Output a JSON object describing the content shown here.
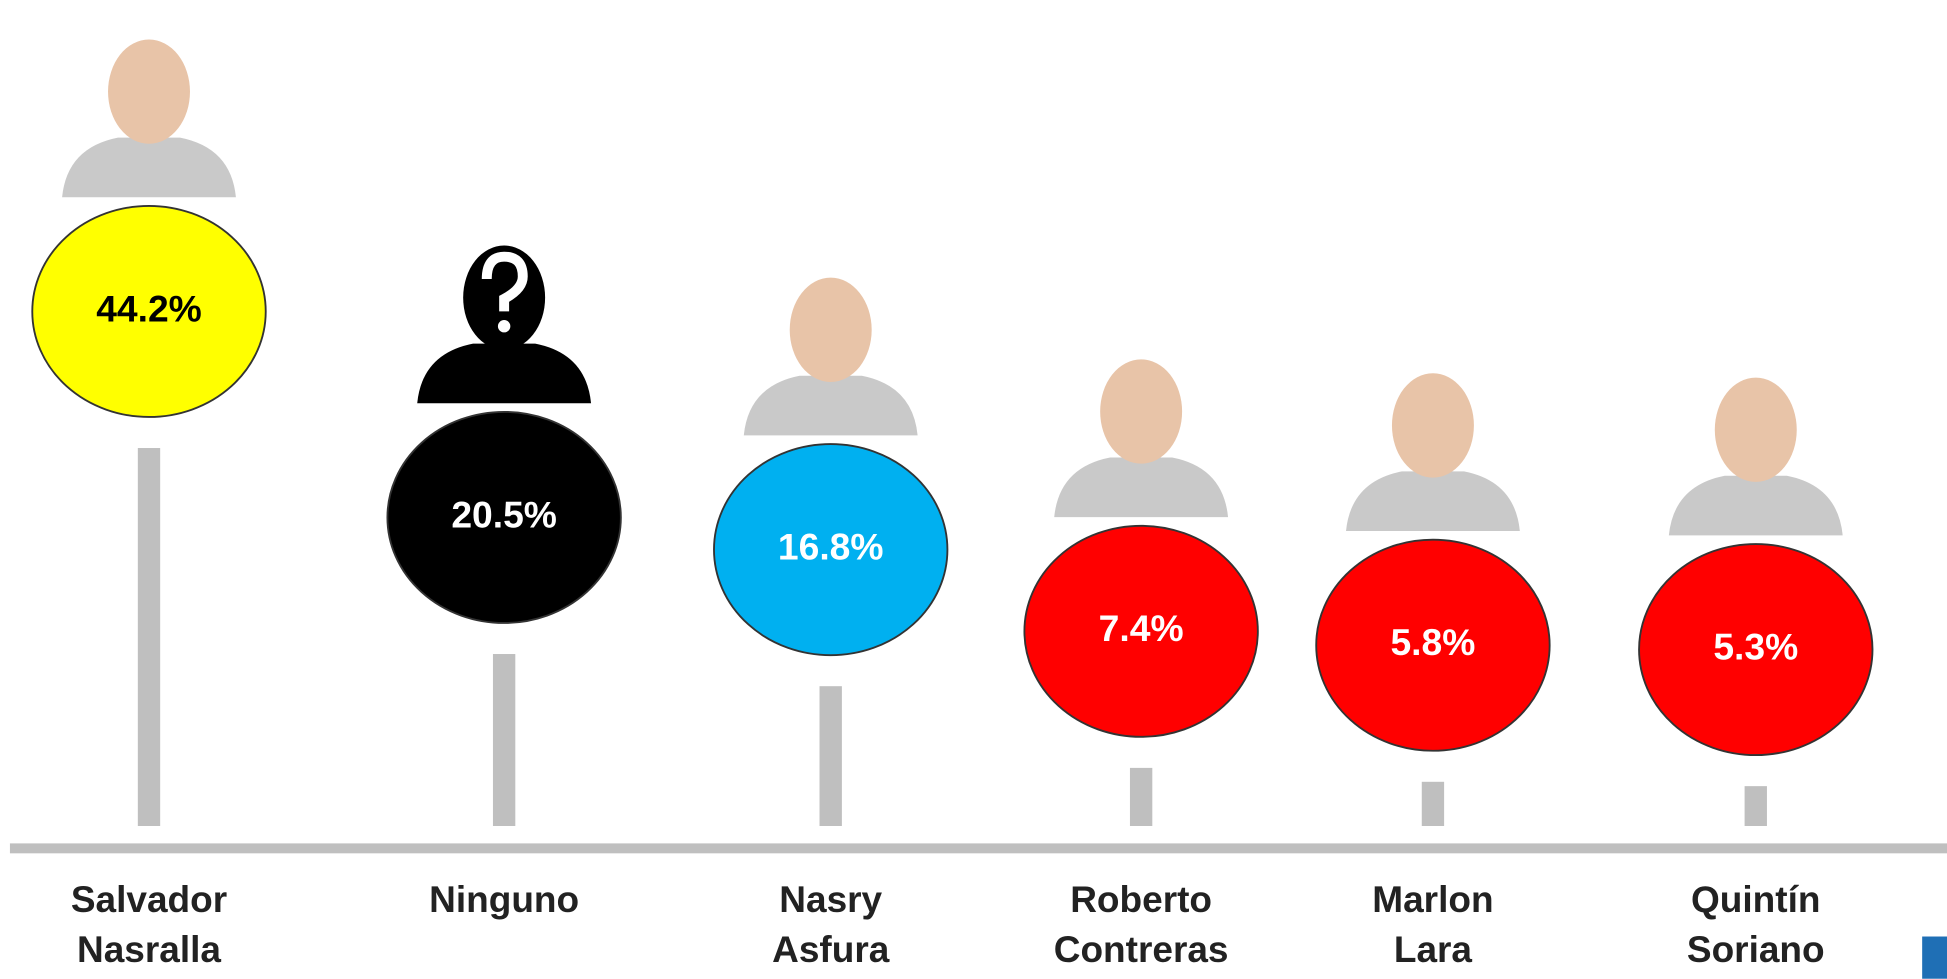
{
  "chart_data": {
    "type": "lollipop",
    "categories": [
      "Salvador Nasralla",
      "Ninguno",
      "Nasry Asfura",
      "Roberto Contreras",
      "Marlon Lara",
      "Quintín Soriano"
    ],
    "values": [
      44.2,
      20.5,
      16.8,
      7.4,
      5.8,
      5.3
    ],
    "value_labels": [
      "44.2%",
      "20.5%",
      "16.8%",
      "7.4%",
      "5.8%",
      "5.3%"
    ],
    "colors": [
      "#ffff00",
      "#000000",
      "#00b0f0",
      "#ff0000",
      "#ff0000",
      "#ff0000"
    ]
  }
}
